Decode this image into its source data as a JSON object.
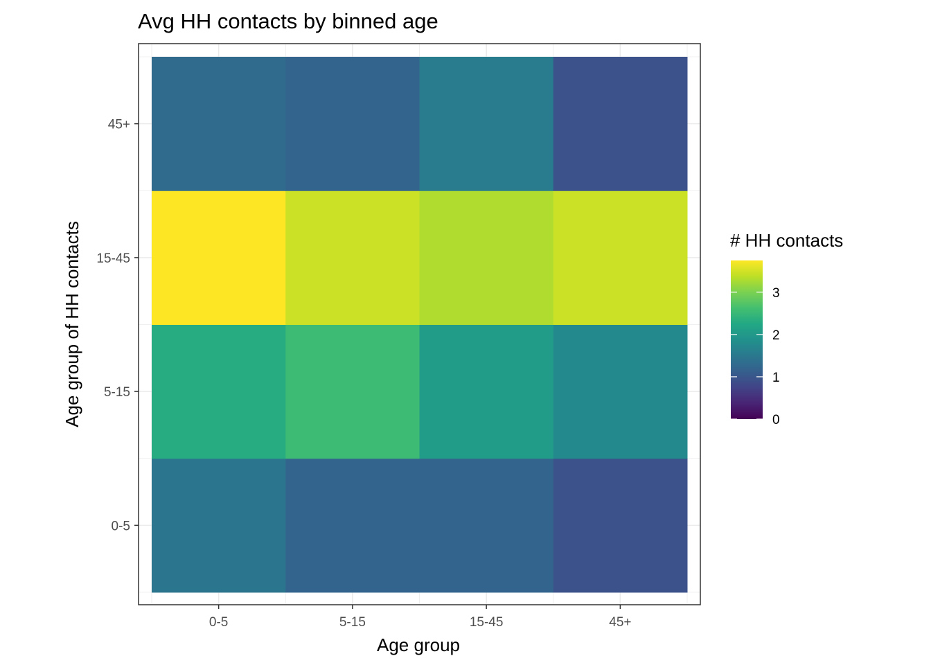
{
  "chart_data": {
    "type": "heatmap",
    "title": "Avg HH contacts by binned age",
    "xlabel": "Age group",
    "ylabel": "Age group of HH contacts",
    "x_categories": [
      "0-5",
      "5-15",
      "15-45",
      "45+"
    ],
    "y_categories": [
      "0-5",
      "5-15",
      "15-45",
      "45+"
    ],
    "values": [
      [
        1.45,
        1.2,
        1.2,
        0.95
      ],
      [
        2.3,
        2.55,
        2.05,
        1.75
      ],
      [
        3.75,
        3.45,
        3.3,
        3.45
      ],
      [
        1.3,
        1.2,
        1.55,
        0.95
      ]
    ],
    "grid": true,
    "legend": {
      "title": "# HH contacts",
      "placement": "right",
      "ticks": [
        "0",
        "1",
        "2",
        "3"
      ],
      "tick_values": [
        0,
        1,
        2,
        3
      ],
      "range": [
        0,
        3.75
      ],
      "colormap": "viridis"
    }
  }
}
